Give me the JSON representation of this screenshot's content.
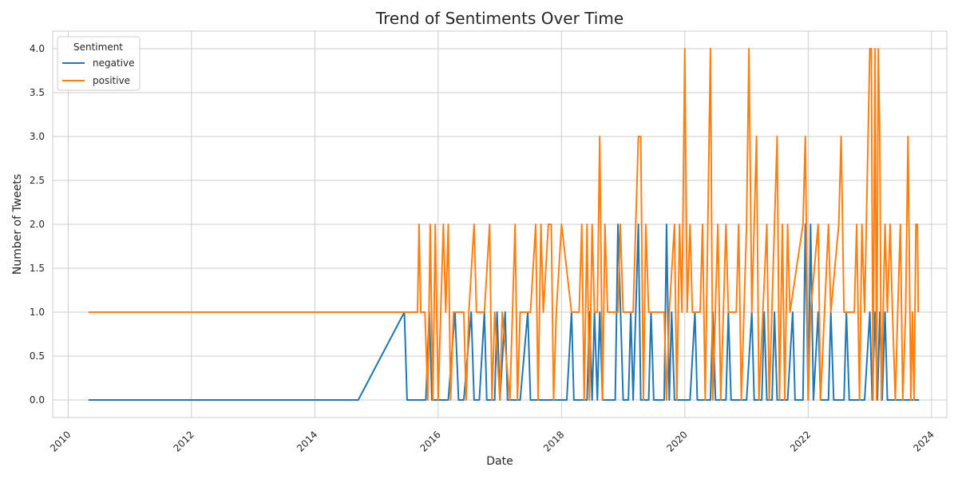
{
  "chart_data": {
    "type": "line",
    "title": "Trend of Sentiments Over Time",
    "xlabel": "Date",
    "ylabel": "Number of Tweets",
    "xlim": [
      "2009-10-01",
      "2024-04-01"
    ],
    "ylim": [
      -0.2,
      4.2
    ],
    "x_ticks": [
      "2010",
      "2012",
      "2014",
      "2016",
      "2018",
      "2020",
      "2022",
      "2024"
    ],
    "y_ticks": [
      "0.0",
      "0.5",
      "1.0",
      "1.5",
      "2.0",
      "2.5",
      "3.0",
      "3.5",
      "4.0"
    ],
    "grid": true,
    "legend": {
      "title": "Sentiment",
      "placement": "top-left"
    },
    "series": [
      {
        "name": "negative",
        "color": "#1f77b4",
        "points": [
          [
            "2010-05-01",
            0
          ],
          [
            "2014-09-15",
            0
          ],
          [
            "2015-06-15",
            1
          ],
          [
            "2015-07-01",
            0
          ],
          [
            "2015-10-20",
            0
          ],
          [
            "2015-11-10",
            1
          ],
          [
            "2015-11-25",
            0
          ],
          [
            "2016-03-01",
            0
          ],
          [
            "2016-04-10",
            1
          ],
          [
            "2016-05-01",
            0
          ],
          [
            "2016-06-01",
            0
          ],
          [
            "2016-07-15",
            1
          ],
          [
            "2016-08-01",
            0
          ],
          [
            "2016-09-01",
            0
          ],
          [
            "2016-10-01",
            1
          ],
          [
            "2016-10-15",
            0
          ],
          [
            "2016-12-01",
            0
          ],
          [
            "2016-12-15",
            1
          ],
          [
            "2017-01-01",
            0
          ],
          [
            "2017-02-01",
            1
          ],
          [
            "2017-02-15",
            0
          ],
          [
            "2017-05-01",
            0
          ],
          [
            "2017-06-15",
            1
          ],
          [
            "2017-07-01",
            0
          ],
          [
            "2018-02-01",
            0
          ],
          [
            "2018-03-01",
            1
          ],
          [
            "2018-03-15",
            0
          ],
          [
            "2018-06-01",
            0
          ],
          [
            "2018-06-15",
            1
          ],
          [
            "2018-07-01",
            0
          ],
          [
            "2018-07-15",
            1
          ],
          [
            "2018-08-01",
            0
          ],
          [
            "2018-08-15",
            1
          ],
          [
            "2018-09-01",
            0
          ],
          [
            "2018-11-15",
            0
          ],
          [
            "2018-12-01",
            2
          ],
          [
            "2019-01-01",
            0
          ],
          [
            "2019-02-01",
            0
          ],
          [
            "2019-02-15",
            1
          ],
          [
            "2019-03-01",
            0
          ],
          [
            "2019-04-01",
            2
          ],
          [
            "2019-04-15",
            0
          ],
          [
            "2019-06-01",
            0
          ],
          [
            "2019-06-15",
            1
          ],
          [
            "2019-07-01",
            0
          ],
          [
            "2019-09-01",
            0
          ],
          [
            "2019-09-15",
            2
          ],
          [
            "2019-10-01",
            0
          ],
          [
            "2019-10-15",
            1
          ],
          [
            "2019-11-01",
            0
          ],
          [
            "2020-02-01",
            0
          ],
          [
            "2020-03-01",
            1
          ],
          [
            "2020-03-15",
            0
          ],
          [
            "2020-06-01",
            0
          ],
          [
            "2020-06-15",
            1
          ],
          [
            "2020-07-01",
            0
          ],
          [
            "2020-09-01",
            0
          ],
          [
            "2020-09-15",
            1
          ],
          [
            "2020-10-01",
            0
          ],
          [
            "2021-01-01",
            0
          ],
          [
            "2021-02-01",
            1
          ],
          [
            "2021-02-15",
            0
          ],
          [
            "2021-04-01",
            0
          ],
          [
            "2021-04-15",
            1
          ],
          [
            "2021-05-01",
            0
          ],
          [
            "2021-06-01",
            0
          ],
          [
            "2021-06-15",
            1
          ],
          [
            "2021-07-01",
            0
          ],
          [
            "2021-09-01",
            0
          ],
          [
            "2021-10-01",
            1
          ],
          [
            "2021-10-15",
            0
          ],
          [
            "2021-12-01",
            0
          ],
          [
            "2021-12-15",
            2
          ],
          [
            "2022-01-01",
            0
          ],
          [
            "2022-01-15",
            2
          ],
          [
            "2022-02-01",
            0
          ],
          [
            "2022-03-01",
            1
          ],
          [
            "2022-03-15",
            0
          ],
          [
            "2022-05-01",
            0
          ],
          [
            "2022-05-15",
            1
          ],
          [
            "2022-06-01",
            0
          ],
          [
            "2022-08-01",
            0
          ],
          [
            "2022-08-15",
            1
          ],
          [
            "2022-09-01",
            0
          ],
          [
            "2022-12-01",
            0
          ],
          [
            "2023-01-01",
            1
          ],
          [
            "2023-01-15",
            0
          ],
          [
            "2023-02-01",
            1
          ],
          [
            "2023-02-15",
            0
          ],
          [
            "2023-03-01",
            1
          ],
          [
            "2023-03-15",
            0
          ],
          [
            "2023-04-01",
            1
          ],
          [
            "2023-04-15",
            0
          ],
          [
            "2023-10-20",
            0
          ]
        ]
      },
      {
        "name": "positive",
        "color": "#ff7f0e",
        "points": [
          [
            "2010-05-01",
            1
          ],
          [
            "2015-05-15",
            1
          ],
          [
            "2015-09-01",
            1
          ],
          [
            "2015-09-10",
            2
          ],
          [
            "2015-09-20",
            1
          ],
          [
            "2015-10-15",
            1
          ],
          [
            "2015-11-01",
            0
          ],
          [
            "2015-11-15",
            2
          ],
          [
            "2015-12-01",
            0
          ],
          [
            "2015-12-15",
            2
          ],
          [
            "2016-01-01",
            0
          ],
          [
            "2016-02-01",
            2
          ],
          [
            "2016-02-15",
            1
          ],
          [
            "2016-03-01",
            2
          ],
          [
            "2016-03-15",
            0
          ],
          [
            "2016-04-01",
            1
          ],
          [
            "2016-06-01",
            1
          ],
          [
            "2016-06-15",
            0
          ],
          [
            "2016-07-01",
            1
          ],
          [
            "2016-08-01",
            2
          ],
          [
            "2016-08-15",
            1
          ],
          [
            "2016-10-01",
            1
          ],
          [
            "2016-11-01",
            2
          ],
          [
            "2016-11-15",
            0
          ],
          [
            "2016-12-01",
            1
          ],
          [
            "2017-01-01",
            0
          ],
          [
            "2017-01-15",
            1
          ],
          [
            "2017-03-01",
            0
          ],
          [
            "2017-04-01",
            2
          ],
          [
            "2017-04-15",
            0
          ],
          [
            "2017-05-01",
            1
          ],
          [
            "2017-07-01",
            1
          ],
          [
            "2017-08-01",
            2
          ],
          [
            "2017-08-15",
            0
          ],
          [
            "2017-09-01",
            2
          ],
          [
            "2017-09-15",
            1
          ],
          [
            "2017-10-15",
            2
          ],
          [
            "2017-11-01",
            2
          ],
          [
            "2017-11-15",
            0
          ],
          [
            "2017-12-01",
            1
          ],
          [
            "2018-01-01",
            2
          ],
          [
            "2018-03-01",
            1
          ],
          [
            "2018-04-15",
            1
          ],
          [
            "2018-05-01",
            2
          ],
          [
            "2018-05-15",
            0
          ],
          [
            "2018-06-01",
            2
          ],
          [
            "2018-06-15",
            0
          ],
          [
            "2018-07-01",
            2
          ],
          [
            "2018-07-15",
            1
          ],
          [
            "2018-08-01",
            1
          ],
          [
            "2018-08-15",
            3
          ],
          [
            "2018-09-01",
            0
          ],
          [
            "2018-09-15",
            2
          ],
          [
            "2018-10-01",
            1
          ],
          [
            "2018-12-01",
            1
          ],
          [
            "2018-12-15",
            2
          ],
          [
            "2019-01-01",
            1
          ],
          [
            "2019-03-01",
            1
          ],
          [
            "2019-04-01",
            3
          ],
          [
            "2019-04-15",
            3
          ],
          [
            "2019-05-01",
            0
          ],
          [
            "2019-05-15",
            2
          ],
          [
            "2019-06-01",
            1
          ],
          [
            "2019-09-01",
            1
          ],
          [
            "2019-09-15",
            0
          ],
          [
            "2019-10-01",
            1
          ],
          [
            "2019-11-01",
            2
          ],
          [
            "2019-11-15",
            0
          ],
          [
            "2019-12-01",
            2
          ],
          [
            "2019-12-15",
            1
          ],
          [
            "2020-01-01",
            4
          ],
          [
            "2020-01-15",
            1
          ],
          [
            "2020-02-01",
            2
          ],
          [
            "2020-02-15",
            1
          ],
          [
            "2020-04-01",
            1
          ],
          [
            "2020-04-15",
            2
          ],
          [
            "2020-05-01",
            0
          ],
          [
            "2020-06-01",
            4
          ],
          [
            "2020-06-15",
            0
          ],
          [
            "2020-07-15",
            2
          ],
          [
            "2020-08-01",
            0
          ],
          [
            "2020-09-01",
            2
          ],
          [
            "2020-09-15",
            1
          ],
          [
            "2020-11-01",
            1
          ],
          [
            "2020-11-15",
            2
          ],
          [
            "2020-12-01",
            0
          ],
          [
            "2021-01-01",
            2
          ],
          [
            "2021-01-15",
            4
          ],
          [
            "2021-02-01",
            1
          ],
          [
            "2021-03-01",
            3
          ],
          [
            "2021-03-15",
            0
          ],
          [
            "2021-05-01",
            2
          ],
          [
            "2021-05-15",
            0
          ],
          [
            "2021-07-01",
            3
          ],
          [
            "2021-07-15",
            0
          ],
          [
            "2021-08-01",
            2
          ],
          [
            "2021-08-15",
            0
          ],
          [
            "2021-09-01",
            2
          ],
          [
            "2021-09-15",
            1
          ],
          [
            "2021-12-01",
            2
          ],
          [
            "2021-12-15",
            3
          ],
          [
            "2022-01-01",
            0
          ],
          [
            "2022-01-15",
            1
          ],
          [
            "2022-03-01",
            2
          ],
          [
            "2022-03-15",
            0
          ],
          [
            "2022-05-01",
            2
          ],
          [
            "2022-05-15",
            1
          ],
          [
            "2022-07-01",
            2
          ],
          [
            "2022-07-15",
            3
          ],
          [
            "2022-08-01",
            1
          ],
          [
            "2022-10-01",
            1
          ],
          [
            "2022-10-15",
            2
          ],
          [
            "2022-11-01",
            0
          ],
          [
            "2022-11-15",
            2
          ],
          [
            "2022-12-01",
            1
          ],
          [
            "2023-01-01",
            4
          ],
          [
            "2023-01-10",
            4
          ],
          [
            "2023-01-20",
            0
          ],
          [
            "2023-02-01",
            4
          ],
          [
            "2023-02-10",
            0
          ],
          [
            "2023-02-20",
            4
          ],
          [
            "2023-03-01",
            3
          ],
          [
            "2023-03-10",
            0
          ],
          [
            "2023-04-01",
            2
          ],
          [
            "2023-04-15",
            1
          ],
          [
            "2023-05-01",
            2
          ],
          [
            "2023-05-15",
            1
          ],
          [
            "2023-06-01",
            0
          ],
          [
            "2023-06-15",
            1
          ],
          [
            "2023-07-01",
            2
          ],
          [
            "2023-07-15",
            0
          ],
          [
            "2023-08-01",
            1
          ],
          [
            "2023-08-15",
            3
          ],
          [
            "2023-09-01",
            0
          ],
          [
            "2023-09-10",
            1
          ],
          [
            "2023-09-20",
            0
          ],
          [
            "2023-10-01",
            2
          ],
          [
            "2023-10-10",
            2
          ],
          [
            "2023-10-15",
            1
          ]
        ]
      }
    ]
  }
}
